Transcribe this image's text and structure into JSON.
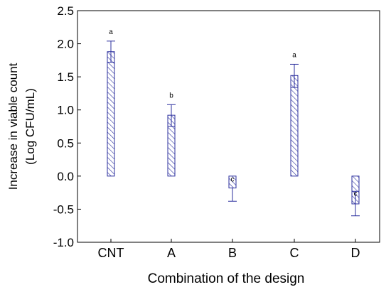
{
  "chart_data": {
    "type": "bar",
    "title": "",
    "xlabel": "Combination of the design",
    "ylabel_lines": [
      "Increase in viable count",
      "(Log CFU/mL)"
    ],
    "ylim": [
      -1.0,
      2.5
    ],
    "yticks": [
      "-1.0",
      "-0.5",
      "0.0",
      "0.5",
      "1.0",
      "1.5",
      "2.0",
      "2.5"
    ],
    "categories": [
      "CNT",
      "A",
      "B",
      "C",
      "D"
    ],
    "values": [
      1.88,
      0.92,
      -0.18,
      1.52,
      -0.42
    ],
    "error_bars": [
      0.16,
      0.16,
      0.2,
      0.17,
      0.18
    ],
    "error_low_line": [
      1.72,
      0.75,
      null,
      1.34,
      -0.23
    ],
    "significance_letters": [
      "a",
      "b",
      "c",
      "a",
      "c"
    ],
    "bar_style": "hatched",
    "bar_color": "#2b2f9e",
    "grid": false,
    "legend": "none"
  }
}
